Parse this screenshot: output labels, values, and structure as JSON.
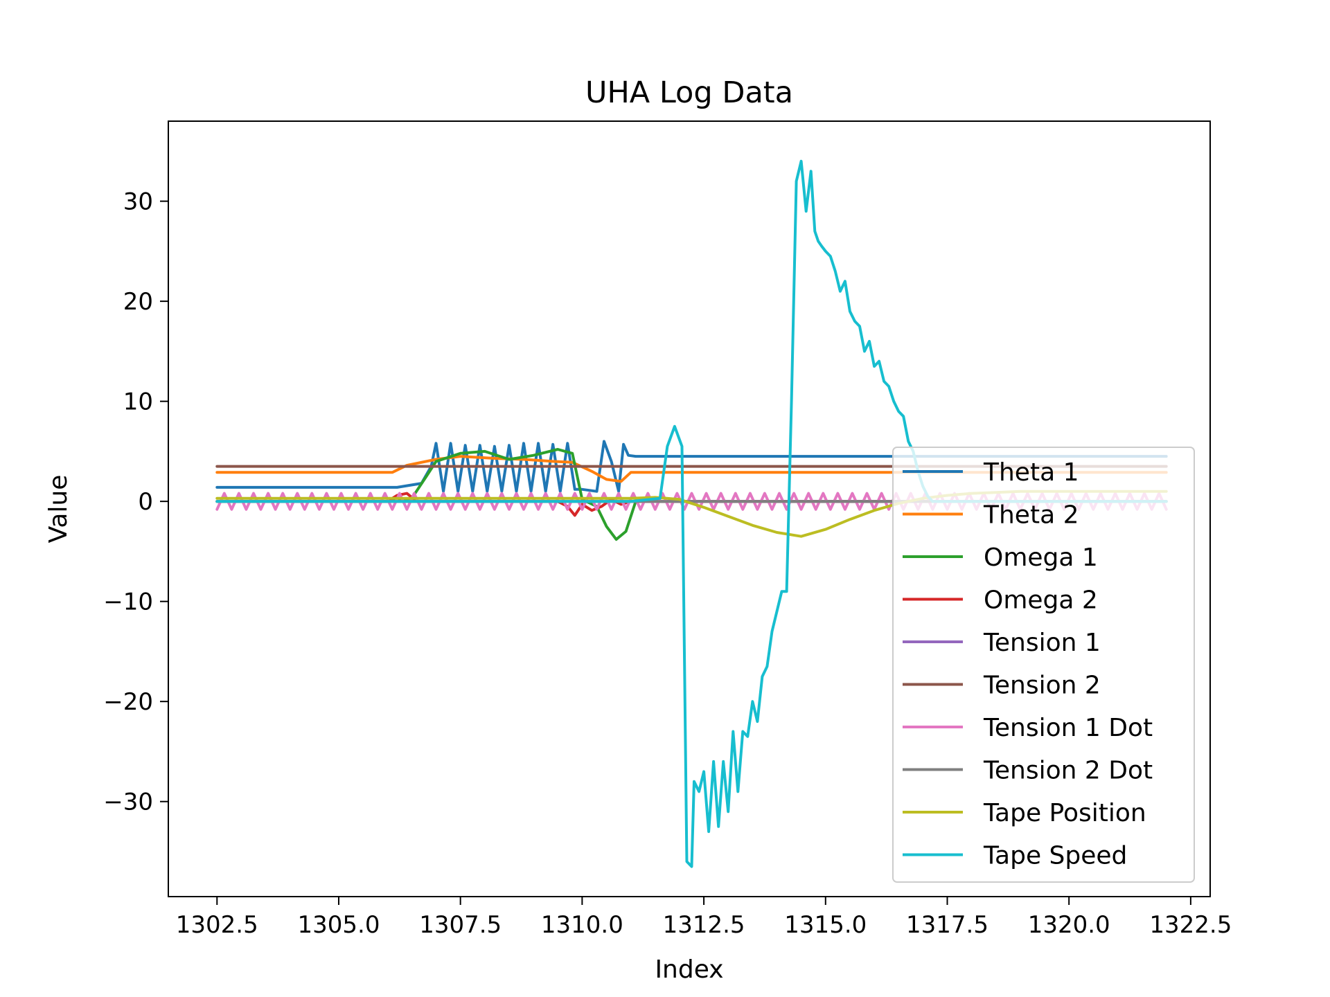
{
  "chart_data": {
    "type": "line",
    "title": "UHA Log Data",
    "xlabel": "Index",
    "ylabel": "Value",
    "xlim": [
      1301.5,
      1322.9
    ],
    "ylim": [
      -39.5,
      38.0
    ],
    "xticks": [
      1302.5,
      1305.0,
      1307.5,
      1310.0,
      1312.5,
      1315.0,
      1317.5,
      1320.0,
      1322.5
    ],
    "xtick_labels": [
      "1302.5",
      "1305.0",
      "1307.5",
      "1310.0",
      "1312.5",
      "1315.0",
      "1317.5",
      "1320.0",
      "1322.5"
    ],
    "yticks": [
      -30,
      -20,
      -10,
      0,
      10,
      20,
      30
    ],
    "ytick_labels": [
      "−30",
      "−20",
      "−10",
      "0",
      "10",
      "20",
      "30"
    ],
    "grid": false,
    "legend_position": "lower-right",
    "series": [
      {
        "name": "Theta 1",
        "color": "#1f77b4",
        "x": [
          1302.5,
          1306.2,
          1306.7,
          1306.9,
          1307.0,
          1307.15,
          1307.3,
          1307.45,
          1307.6,
          1307.75,
          1307.9,
          1308.05,
          1308.2,
          1308.35,
          1308.5,
          1308.65,
          1308.8,
          1308.95,
          1309.1,
          1309.25,
          1309.4,
          1309.55,
          1309.7,
          1309.85,
          1310.0,
          1310.3,
          1310.45,
          1310.6,
          1310.75,
          1310.85,
          1310.95,
          1311.1,
          1315.0,
          1322.0
        ],
        "y": [
          1.4,
          1.4,
          1.8,
          3.5,
          5.8,
          1.0,
          5.8,
          1.0,
          5.6,
          1.0,
          5.6,
          1.0,
          5.5,
          1.0,
          5.6,
          1.0,
          5.8,
          1.0,
          5.8,
          1.0,
          5.7,
          1.0,
          5.8,
          1.2,
          1.2,
          1.0,
          6.0,
          4.0,
          1.0,
          5.7,
          4.6,
          4.5,
          4.5,
          4.5
        ]
      },
      {
        "name": "Theta 2",
        "color": "#ff7f0e",
        "x": [
          1302.5,
          1306.1,
          1306.4,
          1307.0,
          1307.5,
          1308.2,
          1308.8,
          1309.4,
          1309.8,
          1310.2,
          1310.5,
          1310.8,
          1311.0,
          1315.0,
          1322.0
        ],
        "y": [
          2.9,
          2.9,
          3.6,
          4.2,
          4.5,
          4.3,
          4.2,
          4.0,
          3.9,
          3.0,
          2.2,
          2.0,
          2.9,
          2.9,
          2.9
        ]
      },
      {
        "name": "Omega 1",
        "color": "#2ca02c",
        "x": [
          1302.5,
          1306.0,
          1306.5,
          1306.8,
          1307.0,
          1307.5,
          1308.0,
          1308.5,
          1309.0,
          1309.5,
          1309.8,
          1310.0,
          1310.3,
          1310.5,
          1310.7,
          1310.9,
          1311.1,
          1311.5,
          1322.0
        ],
        "y": [
          0.0,
          0.0,
          0.3,
          2.5,
          4.0,
          4.8,
          5.0,
          4.2,
          4.6,
          5.2,
          4.8,
          0.2,
          -0.5,
          -2.5,
          -3.8,
          -3.0,
          0.0,
          0.0,
          0.0
        ]
      },
      {
        "name": "Omega 2",
        "color": "#d62728",
        "x": [
          1302.5,
          1306.0,
          1306.2,
          1306.4,
          1306.6,
          1309.5,
          1309.7,
          1309.85,
          1310.0,
          1310.2,
          1310.4,
          1310.6,
          1310.8,
          1311.0,
          1322.0
        ],
        "y": [
          0.0,
          0.0,
          0.6,
          0.8,
          0.0,
          0.0,
          -0.5,
          -1.4,
          -0.3,
          -0.9,
          -0.5,
          0.2,
          -0.3,
          0.0,
          0.0
        ]
      },
      {
        "name": "Tension 1",
        "color": "#9467bd",
        "x": [
          1302.5,
          1322.0
        ],
        "y": [
          0.0,
          0.0
        ]
      },
      {
        "name": "Tension 2",
        "color": "#8c564b",
        "x": [
          1302.5,
          1322.0
        ],
        "y": [
          3.5,
          3.5
        ]
      },
      {
        "name": "Tension 1 Dot",
        "color": "#e377c2",
        "x": [
          1302.5,
          1302.65,
          1302.8,
          1302.95,
          1303.1,
          1303.25,
          1303.4,
          1303.55,
          1303.7,
          1303.85,
          1304.0,
          1304.15,
          1304.3,
          1304.45,
          1304.6,
          1304.75,
          1304.9,
          1305.05,
          1305.2,
          1305.35,
          1305.5,
          1305.65,
          1305.8,
          1305.95,
          1306.1,
          1306.25,
          1306.4,
          1306.55,
          1306.7,
          1306.85,
          1307.0,
          1307.15,
          1307.3,
          1307.45,
          1307.6,
          1307.75,
          1307.9,
          1308.05,
          1308.2,
          1308.35,
          1308.5,
          1308.65,
          1308.8,
          1308.95,
          1309.1,
          1309.25,
          1309.4,
          1309.55,
          1309.7,
          1309.85,
          1310.0,
          1310.15,
          1310.3,
          1310.45,
          1310.6,
          1310.75,
          1310.9,
          1311.05,
          1311.2,
          1311.35,
          1311.5,
          1311.65,
          1311.8,
          1311.95,
          1312.1,
          1312.25,
          1312.4,
          1312.55,
          1312.7,
          1312.85,
          1313.0,
          1313.15,
          1313.3,
          1313.45,
          1313.6,
          1313.75,
          1313.9,
          1314.05,
          1314.2,
          1314.35,
          1314.5,
          1314.65,
          1314.8,
          1314.95,
          1315.1,
          1315.25,
          1315.4,
          1315.55,
          1315.7,
          1315.85,
          1316.0,
          1316.15,
          1316.3,
          1316.45,
          1316.6,
          1316.75,
          1316.9,
          1317.05,
          1317.2,
          1317.35,
          1317.5,
          1317.65,
          1317.8,
          1317.95,
          1318.1,
          1318.25,
          1318.4,
          1318.55,
          1318.7,
          1318.85,
          1319.0,
          1319.15,
          1319.3,
          1319.45,
          1319.6,
          1319.75,
          1319.9,
          1320.05,
          1320.2,
          1320.35,
          1320.5,
          1320.65,
          1320.8,
          1320.95,
          1321.1,
          1321.25,
          1321.4,
          1321.55,
          1321.7,
          1321.85,
          1322.0
        ],
        "y": [
          -0.8,
          0.8,
          -0.8,
          0.8,
          -0.8,
          0.8,
          -0.8,
          0.8,
          -0.8,
          0.8,
          -0.8,
          0.8,
          -0.8,
          0.8,
          -0.8,
          0.8,
          -0.8,
          0.8,
          -0.8,
          0.8,
          -0.8,
          0.8,
          -0.8,
          0.8,
          -0.8,
          0.8,
          -0.8,
          0.8,
          -0.8,
          0.8,
          -0.8,
          0.8,
          -0.8,
          0.8,
          -0.8,
          0.8,
          -0.8,
          0.8,
          -0.8,
          0.8,
          -0.8,
          0.8,
          -0.8,
          0.8,
          -0.8,
          0.8,
          -0.8,
          0.8,
          -0.8,
          0.8,
          -0.8,
          0.8,
          -0.8,
          0.8,
          -0.8,
          0.8,
          -0.8,
          0.8,
          -0.8,
          0.8,
          -0.8,
          0.8,
          -0.8,
          0.8,
          -0.8,
          0.8,
          -0.8,
          0.8,
          -0.8,
          0.8,
          -0.8,
          0.8,
          -0.8,
          0.8,
          -0.8,
          0.8,
          -0.8,
          0.8,
          -0.8,
          0.8,
          -0.8,
          0.8,
          -0.8,
          0.8,
          -0.8,
          0.8,
          -0.8,
          0.8,
          -0.8,
          0.8,
          -0.8,
          0.8,
          -0.8,
          0.8,
          -0.8,
          0.8,
          -0.8,
          0.8,
          -0.8,
          0.8,
          -0.8,
          0.8,
          -0.8,
          0.8,
          -0.8,
          0.8,
          -0.8,
          0.8,
          -0.8,
          0.8,
          -0.8,
          0.8,
          -0.8,
          0.8,
          -0.8,
          0.8,
          -0.8,
          0.8,
          -0.8,
          0.8,
          -0.8,
          0.8,
          -0.8,
          0.8,
          -0.8,
          0.8,
          -0.8,
          0.8,
          -0.8,
          0.8,
          -0.8
        ]
      },
      {
        "name": "Tension 2 Dot",
        "color": "#7f7f7f",
        "x": [
          1302.5,
          1322.0
        ],
        "y": [
          0.0,
          0.0
        ]
      },
      {
        "name": "Tape Position",
        "color": "#bcbd22",
        "x": [
          1302.5,
          1311.0,
          1311.5,
          1312.0,
          1312.5,
          1313.0,
          1313.5,
          1314.0,
          1314.5,
          1315.0,
          1315.5,
          1316.0,
          1316.5,
          1317.0,
          1317.5,
          1318.0,
          1318.5,
          1319.0,
          1322.0
        ],
        "y": [
          0.3,
          0.3,
          0.4,
          0.2,
          -0.6,
          -1.5,
          -2.4,
          -3.1,
          -3.5,
          -2.8,
          -1.8,
          -0.9,
          -0.2,
          0.3,
          0.6,
          0.8,
          0.9,
          1.0,
          1.0
        ]
      },
      {
        "name": "Tape Speed",
        "color": "#17becf",
        "x": [
          1302.5,
          1311.0,
          1311.6,
          1311.75,
          1311.9,
          1312.05,
          1312.15,
          1312.25,
          1312.3,
          1312.4,
          1312.5,
          1312.6,
          1312.7,
          1312.8,
          1312.9,
          1313.0,
          1313.1,
          1313.2,
          1313.3,
          1313.4,
          1313.5,
          1313.6,
          1313.7,
          1313.8,
          1313.9,
          1314.0,
          1314.1,
          1314.2,
          1314.3,
          1314.4,
          1314.5,
          1314.6,
          1314.7,
          1314.78,
          1314.85,
          1314.92,
          1315.0,
          1315.1,
          1315.2,
          1315.3,
          1315.4,
          1315.5,
          1315.6,
          1315.7,
          1315.8,
          1315.9,
          1316.0,
          1316.1,
          1316.2,
          1316.3,
          1316.4,
          1316.5,
          1316.6,
          1316.7,
          1316.8,
          1316.9,
          1317.0,
          1317.1,
          1317.2,
          1317.3,
          1317.4,
          1317.5,
          1317.6,
          1317.7,
          1317.8,
          1317.9,
          1318.0,
          1318.1,
          1318.2,
          1318.3,
          1318.4,
          1318.5,
          1318.6,
          1318.7,
          1318.8,
          1318.9,
          1319.0,
          1322.0
        ],
        "y": [
          0.0,
          0.0,
          0.3,
          5.5,
          7.5,
          5.5,
          -36.0,
          -36.5,
          -28.0,
          -29.0,
          -27.0,
          -33.0,
          -26.0,
          -32.5,
          -26.0,
          -31.0,
          -23.0,
          -29.0,
          -23.0,
          -23.5,
          -20.0,
          -22.0,
          -17.5,
          -16.5,
          -13.0,
          -11.0,
          -9.0,
          -9.0,
          10.0,
          32.0,
          34.0,
          29.0,
          33.0,
          27.0,
          26.0,
          25.5,
          25.0,
          24.5,
          23.0,
          21.0,
          22.0,
          19.0,
          18.0,
          17.5,
          15.0,
          16.0,
          13.5,
          14.0,
          12.0,
          11.5,
          10.0,
          9.0,
          8.5,
          6.0,
          5.0,
          3.0,
          1.5,
          0.5,
          0.0,
          0.0,
          0.0,
          0.0,
          0.0,
          0.0,
          0.0,
          0.0,
          0.0,
          0.0,
          0.0,
          0.0,
          0.0,
          0.0,
          0.0,
          0.0,
          0.0,
          0.0,
          0.0,
          0.0
        ]
      }
    ]
  }
}
